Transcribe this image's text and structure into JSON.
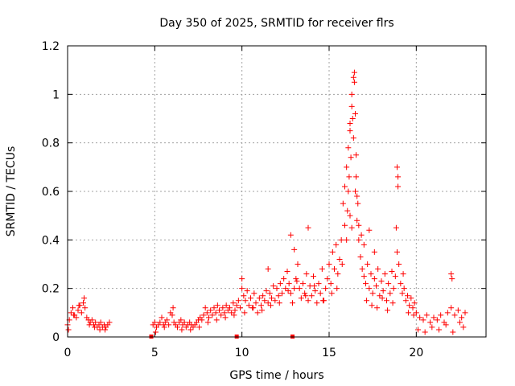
{
  "chart_data": {
    "type": "scatter",
    "title": "Day 350 of 2025, SRMTID for receiver flrs",
    "xlabel": "GPS time / hours",
    "ylabel": "SRMTID / TECUs",
    "xlim": [
      0,
      24
    ],
    "ylim": [
      0,
      1.2
    ],
    "x_ticks": [
      0,
      5,
      10,
      15,
      20
    ],
    "x_tick_labels": [
      "0",
      "5",
      "10",
      "15",
      "20"
    ],
    "y_ticks": [
      0,
      0.2,
      0.4,
      0.6,
      0.8,
      1.0,
      1.2
    ],
    "y_tick_labels": [
      "0",
      "0.2",
      "0.4",
      "0.6",
      "0.8",
      "1",
      "1.2"
    ],
    "grid": true,
    "marker": "+",
    "color": "#ff0000",
    "gap_markers_x": [
      4.8,
      9.7,
      12.9
    ],
    "series": [
      {
        "name": "SRMTID",
        "x": [
          0.0,
          0.1,
          0.2,
          0.3,
          0.4,
          0.5,
          0.6,
          0.7,
          0.8,
          0.9,
          1.0,
          1.1,
          1.2,
          1.3,
          1.4,
          1.5,
          1.6,
          1.7,
          1.8,
          1.9,
          2.0,
          2.1,
          2.2,
          2.3,
          2.4,
          4.9,
          5.0,
          5.1,
          5.2,
          5.3,
          5.4,
          5.5,
          5.6,
          5.7,
          5.8,
          5.9,
          6.0,
          6.1,
          6.2,
          6.3,
          6.4,
          6.5,
          6.6,
          6.7,
          6.8,
          6.9,
          7.0,
          7.1,
          7.2,
          7.3,
          7.4,
          7.5,
          7.6,
          7.7,
          7.8,
          7.9,
          8.0,
          8.1,
          8.2,
          8.3,
          8.4,
          8.5,
          8.6,
          8.7,
          8.8,
          8.9,
          9.0,
          9.1,
          9.2,
          9.3,
          9.4,
          9.5,
          9.6,
          9.7,
          9.8,
          9.9,
          10.0,
          10.1,
          10.2,
          10.3,
          10.4,
          10.5,
          10.6,
          10.7,
          10.8,
          10.9,
          11.0,
          11.1,
          11.2,
          11.3,
          11.4,
          11.5,
          11.6,
          11.7,
          11.8,
          11.9,
          12.0,
          12.1,
          12.2,
          12.3,
          12.4,
          12.5,
          12.6,
          12.7,
          12.8,
          12.9,
          13.0,
          13.1,
          13.2,
          13.3,
          13.4,
          13.5,
          13.6,
          13.7,
          13.8,
          13.9,
          14.0,
          14.1,
          14.2,
          14.3,
          14.4,
          14.5,
          14.6,
          14.7,
          14.8,
          14.9,
          15.0,
          15.1,
          15.2,
          15.3,
          15.4,
          15.5,
          15.6,
          15.7,
          15.8,
          15.9,
          16.0,
          16.1,
          16.2,
          16.3,
          16.4,
          16.5,
          16.6,
          16.7,
          16.8,
          16.9,
          17.0,
          17.1,
          17.2,
          17.3,
          17.4,
          17.5,
          17.6,
          17.7,
          17.8,
          17.9,
          18.0,
          18.1,
          18.2,
          18.3,
          18.4,
          18.5,
          18.6,
          18.7,
          18.8,
          18.9,
          19.0,
          19.1,
          19.2,
          19.3,
          19.4,
          19.5,
          19.6,
          19.7,
          19.8,
          19.9,
          20.0,
          20.2,
          20.4,
          20.6,
          20.8,
          21.0,
          21.2,
          21.4,
          21.6,
          21.8,
          22.0,
          22.2,
          22.4,
          22.6,
          22.8,
          0.05,
          0.35,
          0.65,
          0.95,
          1.25,
          1.55,
          1.85,
          2.15,
          5.05,
          5.55,
          6.05,
          6.55,
          7.05,
          7.55,
          8.05,
          8.55,
          9.05,
          9.55,
          10.15,
          10.65,
          11.15,
          11.65,
          12.15,
          12.65,
          13.15,
          13.65,
          14.15,
          14.65,
          15.15,
          15.45,
          15.75,
          16.05,
          16.15,
          16.25,
          16.35,
          16.45,
          16.55,
          16.65,
          16.85,
          17.15,
          17.45,
          17.75,
          18.05,
          18.35,
          18.65,
          18.85,
          18.95,
          19.25,
          19.55,
          19.85,
          20.1,
          20.5,
          20.9,
          21.3,
          21.7,
          22.1,
          22.5,
          22.7,
          16.1,
          16.2,
          16.3,
          16.4,
          16.45,
          16.5,
          16.55,
          16.3,
          16.2,
          16.0,
          15.9,
          16.6,
          16.7,
          17.0,
          17.3,
          17.6,
          18.9,
          18.95,
          13.0,
          13.8,
          12.8,
          22.0,
          22.05,
          10.0,
          11.5
        ],
        "y": [
          0.05,
          0.07,
          0.1,
          0.12,
          0.09,
          0.08,
          0.11,
          0.13,
          0.1,
          0.14,
          0.12,
          0.08,
          0.07,
          0.06,
          0.07,
          0.05,
          0.06,
          0.04,
          0.05,
          0.06,
          0.04,
          0.05,
          0.04,
          0.05,
          0.06,
          0.05,
          0.06,
          0.04,
          0.05,
          0.06,
          0.08,
          0.05,
          0.06,
          0.07,
          0.05,
          0.1,
          0.09,
          0.06,
          0.05,
          0.04,
          0.06,
          0.07,
          0.05,
          0.06,
          0.04,
          0.05,
          0.06,
          0.05,
          0.04,
          0.05,
          0.06,
          0.07,
          0.08,
          0.07,
          0.09,
          0.12,
          0.1,
          0.08,
          0.11,
          0.09,
          0.12,
          0.1,
          0.13,
          0.11,
          0.09,
          0.12,
          0.1,
          0.13,
          0.11,
          0.12,
          0.1,
          0.14,
          0.11,
          0.13,
          0.15,
          0.12,
          0.2,
          0.17,
          0.15,
          0.19,
          0.13,
          0.16,
          0.12,
          0.18,
          0.14,
          0.1,
          0.16,
          0.13,
          0.17,
          0.15,
          0.19,
          0.14,
          0.18,
          0.16,
          0.21,
          0.15,
          0.2,
          0.17,
          0.22,
          0.18,
          0.24,
          0.2,
          0.27,
          0.22,
          0.18,
          0.14,
          0.2,
          0.24,
          0.3,
          0.2,
          0.16,
          0.22,
          0.18,
          0.26,
          0.15,
          0.21,
          0.17,
          0.25,
          0.19,
          0.14,
          0.22,
          0.18,
          0.28,
          0.15,
          0.2,
          0.24,
          0.3,
          0.22,
          0.35,
          0.28,
          0.38,
          0.26,
          0.32,
          0.4,
          0.55,
          0.62,
          0.7,
          0.78,
          0.85,
          0.95,
          0.82,
          0.6,
          0.48,
          0.4,
          0.33,
          0.28,
          0.25,
          0.22,
          0.3,
          0.2,
          0.26,
          0.18,
          0.24,
          0.21,
          0.28,
          0.17,
          0.23,
          0.19,
          0.26,
          0.15,
          0.22,
          0.18,
          0.27,
          0.2,
          0.25,
          0.35,
          0.3,
          0.22,
          0.18,
          0.2,
          0.15,
          0.17,
          0.13,
          0.16,
          0.12,
          0.14,
          0.1,
          0.08,
          0.07,
          0.09,
          0.06,
          0.08,
          0.07,
          0.09,
          0.06,
          0.1,
          0.12,
          0.09,
          0.11,
          0.08,
          0.1,
          0.03,
          0.09,
          0.13,
          0.16,
          0.05,
          0.04,
          0.03,
          0.03,
          0.02,
          0.04,
          0.12,
          0.03,
          0.03,
          0.04,
          0.06,
          0.07,
          0.08,
          0.09,
          0.1,
          0.12,
          0.11,
          0.13,
          0.14,
          0.19,
          0.23,
          0.17,
          0.21,
          0.15,
          0.18,
          0.2,
          0.3,
          0.52,
          0.66,
          0.74,
          0.9,
          1.05,
          0.75,
          0.55,
          0.42,
          0.15,
          0.13,
          0.12,
          0.16,
          0.11,
          0.14,
          0.45,
          0.62,
          0.26,
          0.1,
          0.09,
          0.03,
          0.02,
          0.04,
          0.03,
          0.05,
          0.02,
          0.06,
          0.04,
          0.6,
          0.88,
          1.0,
          1.07,
          1.09,
          0.92,
          0.66,
          0.45,
          0.5,
          0.4,
          0.46,
          0.58,
          0.46,
          0.38,
          0.44,
          0.35,
          0.7,
          0.66,
          0.36,
          0.45,
          0.42,
          0.26,
          0.24,
          0.24,
          0.28
        ]
      }
    ]
  }
}
